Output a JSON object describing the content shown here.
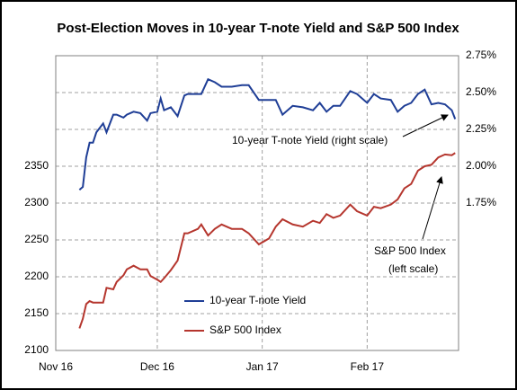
{
  "chart_data": {
    "type": "line",
    "title": "Post-Election Moves in 10-year T-note Yield and S&P 500 Index",
    "x": [
      7,
      8,
      9,
      10,
      11,
      12,
      14,
      15,
      17,
      18,
      20,
      21,
      23,
      25,
      27,
      28,
      30,
      31,
      32,
      34,
      36,
      38,
      39,
      42,
      43,
      45,
      47,
      49,
      52,
      55,
      57,
      60,
      63,
      65,
      67,
      70,
      73,
      76,
      78,
      80,
      82,
      84,
      87,
      89,
      92,
      94,
      96,
      99,
      101,
      103,
      105,
      107,
      109,
      111,
      113,
      115,
      117,
      118
    ],
    "xlim": [
      0,
      119
    ],
    "xticks": [
      {
        "value": 0,
        "label": "Nov 16"
      },
      {
        "value": 30,
        "label": "Dec 16"
      },
      {
        "value": 61,
        "label": "Jan 17"
      },
      {
        "value": 92,
        "label": "Feb 17"
      }
    ],
    "ylim": [
      2100,
      2500
    ],
    "yticks": [
      2100,
      2150,
      2200,
      2250,
      2300,
      2350
    ],
    "y2lim": [
      0.75,
      2.75
    ],
    "y2ticks": [
      {
        "value": 1.75,
        "label": "1.75%"
      },
      {
        "value": 2.0,
        "label": "2.00%"
      },
      {
        "value": 2.25,
        "label": "2.25%"
      },
      {
        "value": 2.5,
        "label": "2.50%"
      },
      {
        "value": 2.75,
        "label": "2.75%"
      }
    ],
    "grid": true,
    "legend": "lower left",
    "series": [
      {
        "name": "10-year T-note Yield",
        "color": "#1f3e96",
        "axis": "y2",
        "values": [
          1.84,
          1.86,
          2.06,
          2.16,
          2.16,
          2.23,
          2.29,
          2.23,
          2.35,
          2.35,
          2.33,
          2.35,
          2.37,
          2.36,
          2.31,
          2.36,
          2.37,
          2.46,
          2.38,
          2.4,
          2.34,
          2.48,
          2.49,
          2.49,
          2.49,
          2.59,
          2.57,
          2.54,
          2.54,
          2.55,
          2.55,
          2.45,
          2.45,
          2.45,
          2.35,
          2.41,
          2.4,
          2.38,
          2.43,
          2.37,
          2.41,
          2.41,
          2.51,
          2.49,
          2.43,
          2.49,
          2.46,
          2.45,
          2.37,
          2.41,
          2.43,
          2.49,
          2.52,
          2.42,
          2.43,
          2.42,
          2.38,
          2.32
        ]
      },
      {
        "name": "S&P 500 Index",
        "color": "#b5362e",
        "values": [
          2130,
          2143,
          2163,
          2167,
          2165,
          2165,
          2165,
          2185,
          2183,
          2193,
          2202,
          2210,
          2215,
          2210,
          2210,
          2201,
          2196,
          2193,
          2198,
          2209,
          2222,
          2259,
          2259,
          2265,
          2271,
          2256,
          2265,
          2271,
          2265,
          2265,
          2259,
          2244,
          2252,
          2268,
          2278,
          2271,
          2268,
          2276,
          2273,
          2285,
          2280,
          2283,
          2298,
          2289,
          2283,
          2295,
          2293,
          2298,
          2305,
          2320,
          2326,
          2344,
          2350,
          2352,
          2362,
          2366,
          2365,
          2368
        ]
      }
    ],
    "annotations": [
      "10-year T-note Yield (right scale)",
      "S&P 500 Index",
      "(left scale)"
    ]
  }
}
